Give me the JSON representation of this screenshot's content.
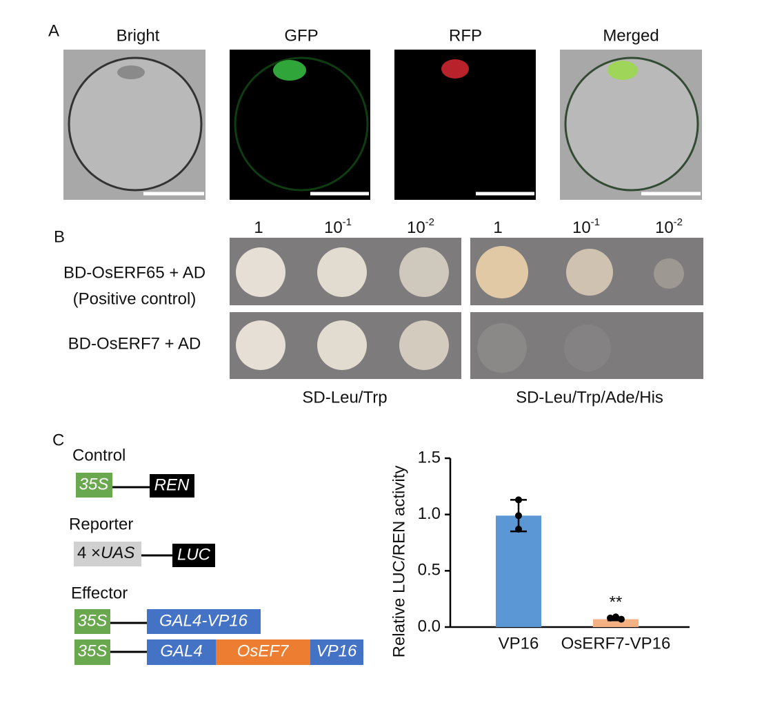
{
  "panel_a": {
    "label": "A",
    "titles": [
      "Bright",
      "GFP",
      "RFP",
      "Merged"
    ]
  },
  "panel_b": {
    "label": "B",
    "dilutions": [
      {
        "base": "1"
      },
      {
        "base": "10",
        "exp": "-1"
      },
      {
        "base": "10",
        "exp": "-2"
      },
      {
        "base": "1"
      },
      {
        "base": "10",
        "exp": "-1"
      },
      {
        "base": "10",
        "exp": "-2"
      }
    ],
    "rows": [
      "BD-OsERF65 + AD",
      "(Positive control)",
      "BD-OsERF7 + AD"
    ],
    "media": [
      "SD-Leu/Trp",
      "SD-Leu/Trp/Ade/His"
    ]
  },
  "panel_c": {
    "label": "C",
    "constructs": {
      "control": {
        "title": "Control",
        "promoter": "35S",
        "gene": "REN"
      },
      "reporter": {
        "title": "Reporter",
        "prefix": "4 ×",
        "promoter": "UAS",
        "gene": "LUC"
      },
      "effector": {
        "title": "Effector",
        "promoter": "35S",
        "gene1": "GAL4-VP16",
        "parts": [
          "GAL4",
          "OsEF7",
          "VP16"
        ]
      }
    }
  },
  "chart_data": {
    "type": "bar",
    "y_label": "Relative LUC/REN activity",
    "categories": [
      "VP16",
      "OsERF7-VP16"
    ],
    "values": [
      0.99,
      0.07
    ],
    "errors": [
      0.14,
      0.01
    ],
    "points": [
      [
        1.13,
        0.99,
        0.87
      ],
      [
        0.08,
        0.09,
        0.07
      ]
    ],
    "colors": [
      "#5b97d4",
      "#f4b183"
    ],
    "annotations": [
      "",
      "**"
    ],
    "ylim": [
      0,
      1.5
    ],
    "yticks": [
      {
        "value": 0,
        "label": "0.0"
      },
      0.5,
      {
        "value": 1,
        "label": "1.0"
      },
      1.5
    ]
  }
}
